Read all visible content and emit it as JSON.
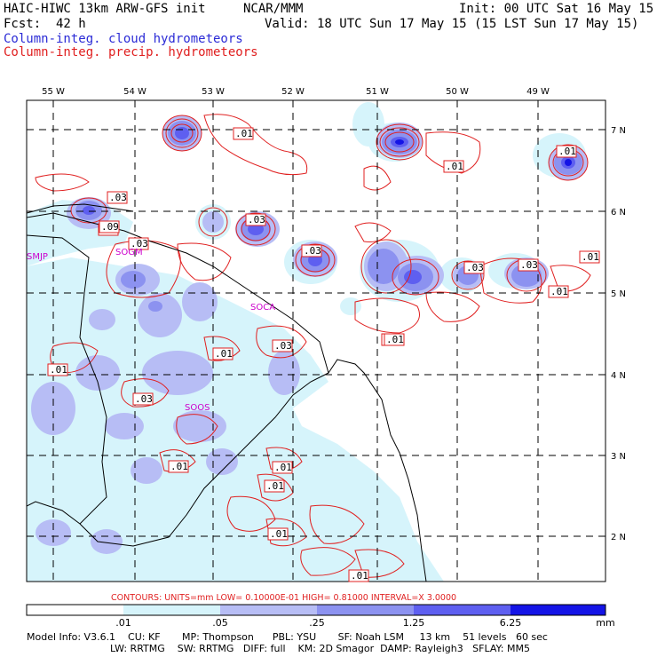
{
  "header": {
    "model": "HAIC-HIWC 13km ARW-GFS init",
    "org": "NCAR/MMM",
    "init": "Init: 00 UTC Sat 16 May 15",
    "fcst": "Fcst:  42 h",
    "valid": "Valid: 18 UTC Sun 17 May 15 (15 LST Sun 17 May 15)",
    "legend_cloud": "Column-integ. cloud hydrometeors",
    "legend_precip": "Column-integ. precip. hydrometeors"
  },
  "axes": {
    "lon_labels": [
      "55 W",
      "54 W",
      "53 W",
      "52 W",
      "51 W",
      "50 W",
      "49 W"
    ],
    "lat_labels": [
      "7 N",
      "6 N",
      "5 N",
      "4 N",
      "3 N",
      "2 N"
    ]
  },
  "stations": [
    "SMJP",
    "SOCA",
    "SOOS",
    "SOGM"
  ],
  "contour_labels": [
    ".01",
    ".03",
    ".01",
    ".09",
    ".03",
    ".03",
    ".03",
    ".03",
    ".01",
    ".03",
    ".01",
    ".01",
    ".03",
    ".01",
    ".01",
    ".01",
    ".01",
    ".01",
    ".01",
    ".01",
    ".01",
    ".01",
    ".03",
    ".01"
  ],
  "contours_info": "CONTOURS:  UNITS=mm  LOW= 0.10000E-01  HIGH= 0.81000     INTERVAL=X  3.0000",
  "colorbar": {
    "ticks": [
      ".01",
      ".05",
      ".25",
      "1.25",
      "6.25"
    ],
    "unit": "mm",
    "colors": [
      "#ffffff",
      "#d6f4fb",
      "#b7bdf5",
      "#8c92f0",
      "#5e5ff0",
      "#1414e6"
    ]
  },
  "footer": {
    "line1": "Model Info: V3.6.1    CU: KF       MP: Thompson      PBL: YSU       SF: Noah LSM     13 km    51 levels   60 sec",
    "line2": "LW: RRTMG    SW: RRTMG   DIFF: full    KM: 2D Smagor  DAMP: Rayleigh3   SFLAY: MM5"
  },
  "colors": {
    "cloud_text": "#2b2bd6",
    "precip": "#e02020",
    "station": "#cc00cc"
  }
}
